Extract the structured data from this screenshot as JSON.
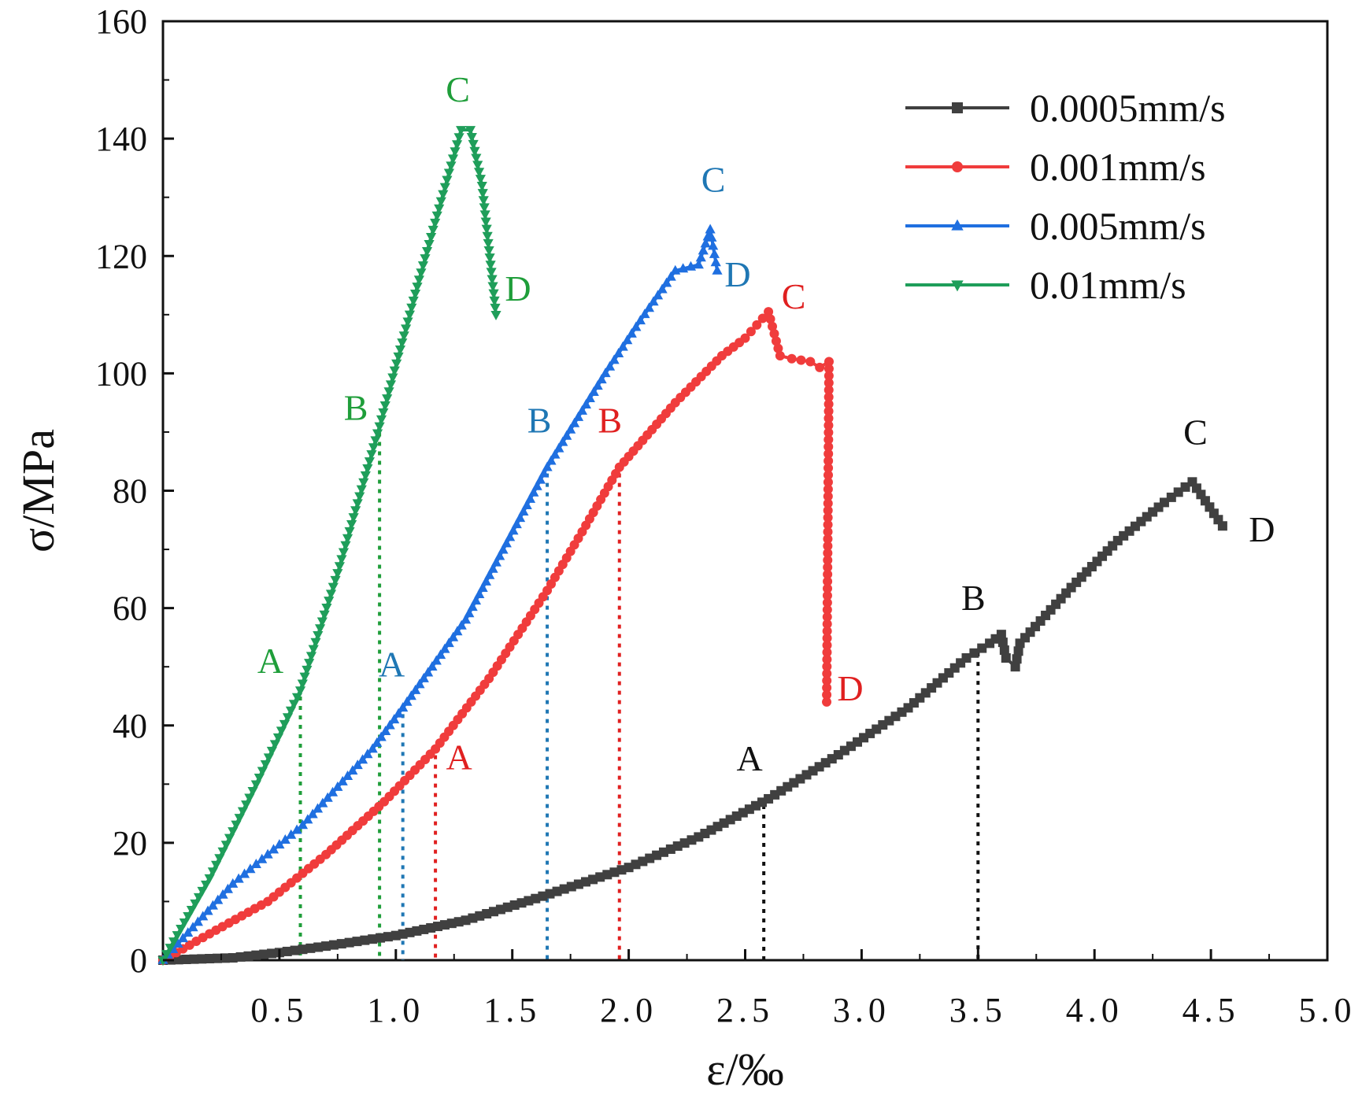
{
  "chart_data": {
    "type": "line",
    "title": "",
    "xlabel": "ε/‰",
    "ylabel": "σ/MPa",
    "xlim": [
      0,
      5
    ],
    "ylim": [
      0,
      160
    ],
    "x_ticks": [
      {
        "value": 0.5,
        "label": "0.5"
      },
      {
        "value": 1.0,
        "label": "1.0"
      },
      {
        "value": 1.5,
        "label": "1.5"
      },
      {
        "value": 2.0,
        "label": "2.0"
      },
      {
        "value": 2.5,
        "label": "2.5"
      },
      {
        "value": 3.0,
        "label": "3.0"
      },
      {
        "value": 3.5,
        "label": "3.5"
      },
      {
        "value": 4.0,
        "label": "4.0"
      },
      {
        "value": 4.5,
        "label": "4.5"
      },
      {
        "value": 5.0,
        "label": "5.0"
      }
    ],
    "y_ticks": [
      {
        "value": 0,
        "label": "0"
      },
      {
        "value": 20,
        "label": "20"
      },
      {
        "value": 40,
        "label": "40"
      },
      {
        "value": 60,
        "label": "60"
      },
      {
        "value": 80,
        "label": "80"
      },
      {
        "value": 100,
        "label": "100"
      },
      {
        "value": 120,
        "label": "120"
      },
      {
        "value": 140,
        "label": "140"
      },
      {
        "value": 160,
        "label": "160"
      }
    ],
    "legend_position": "top-right",
    "grid": false,
    "series": [
      {
        "name": "0.0005mm/s",
        "color": "#404040",
        "marker": "square",
        "points": [
          [
            0,
            0
          ],
          [
            0.3,
            0.4
          ],
          [
            0.5,
            1.3
          ],
          [
            0.7,
            2.4
          ],
          [
            1.0,
            4.2
          ],
          [
            1.3,
            6.8
          ],
          [
            1.6,
            10.5
          ],
          [
            2.0,
            15.8
          ],
          [
            2.3,
            21.0
          ],
          [
            2.6,
            27.5
          ],
          [
            2.9,
            35.0
          ],
          [
            3.2,
            43.0
          ],
          [
            3.45,
            51.5
          ],
          [
            3.55,
            54.0
          ],
          [
            3.6,
            55.5
          ],
          [
            3.62,
            51.5
          ],
          [
            3.66,
            50.0
          ],
          [
            3.68,
            54.0
          ],
          [
            3.9,
            63.5
          ],
          [
            4.1,
            71.5
          ],
          [
            4.3,
            78.0
          ],
          [
            4.42,
            81.5
          ],
          [
            4.55,
            74.0
          ]
        ],
        "stages": [
          {
            "label": "A",
            "x": 2.58,
            "y": 27.5
          },
          {
            "label": "B",
            "x": 3.5,
            "y": 53.5
          },
          {
            "label": "C",
            "x": 4.42,
            "y": 81.5
          },
          {
            "label": "D",
            "x": 4.55,
            "y": 74.0
          }
        ]
      },
      {
        "name": "0.001mm/s",
        "color": "#f03c3c",
        "marker": "circle",
        "points": [
          [
            0,
            0
          ],
          [
            0.2,
            4.5
          ],
          [
            0.45,
            10.0
          ],
          [
            0.7,
            18.0
          ],
          [
            0.95,
            27.0
          ],
          [
            1.17,
            36.0
          ],
          [
            1.4,
            48.0
          ],
          [
            1.65,
            63.0
          ],
          [
            1.8,
            73.0
          ],
          [
            1.96,
            84.0
          ],
          [
            2.2,
            95.0
          ],
          [
            2.4,
            103.0
          ],
          [
            2.5,
            106.0
          ],
          [
            2.6,
            110.5
          ],
          [
            2.65,
            103.0
          ],
          [
            2.7,
            102.5
          ],
          [
            2.78,
            102.0
          ],
          [
            2.82,
            101.0
          ],
          [
            2.86,
            102.0
          ],
          [
            2.85,
            44.0
          ]
        ],
        "stages": [
          {
            "label": "A",
            "x": 1.17,
            "y": 36.0
          },
          {
            "label": "B",
            "x": 1.96,
            "y": 84.0
          },
          {
            "label": "C",
            "x": 2.6,
            "y": 110.5
          },
          {
            "label": "D",
            "x": 2.85,
            "y": 44.0
          }
        ]
      },
      {
        "name": "0.005mm/s",
        "color": "#1f6fe0",
        "marker": "triangle-up",
        "points": [
          [
            0,
            0
          ],
          [
            0.3,
            13.0
          ],
          [
            0.6,
            23.0
          ],
          [
            0.9,
            36.0
          ],
          [
            1.03,
            43.0
          ],
          [
            1.3,
            58.0
          ],
          [
            1.65,
            84.0
          ],
          [
            1.9,
            100.0
          ],
          [
            2.05,
            109.0
          ],
          [
            2.2,
            117.5
          ],
          [
            2.3,
            118.5
          ],
          [
            2.35,
            124.5
          ],
          [
            2.38,
            117.5
          ]
        ],
        "stages": [
          {
            "label": "A",
            "x": 1.03,
            "y": 43.0
          },
          {
            "label": "B",
            "x": 1.65,
            "y": 84.0
          },
          {
            "label": "C",
            "x": 2.35,
            "y": 124.5
          },
          {
            "label": "D",
            "x": 2.38,
            "y": 117.5
          }
        ]
      },
      {
        "name": "0.01mm/s",
        "color": "#1f9e5a",
        "marker": "triangle-down",
        "points": [
          [
            0,
            0
          ],
          [
            0.2,
            14.0
          ],
          [
            0.4,
            30.0
          ],
          [
            0.59,
            46.0
          ],
          [
            0.75,
            66.0
          ],
          [
            0.93,
            91.0
          ],
          [
            1.1,
            116.0
          ],
          [
            1.28,
            141.5
          ],
          [
            1.32,
            141.5
          ],
          [
            1.37,
            132.0
          ],
          [
            1.43,
            110.0
          ]
        ],
        "stages": [
          {
            "label": "A",
            "x": 0.59,
            "y": 46.0
          },
          {
            "label": "B",
            "x": 0.93,
            "y": 91.0
          },
          {
            "label": "C",
            "x": 1.3,
            "y": 141.5
          },
          {
            "label": "D",
            "x": 1.43,
            "y": 110.0
          }
        ]
      }
    ]
  }
}
